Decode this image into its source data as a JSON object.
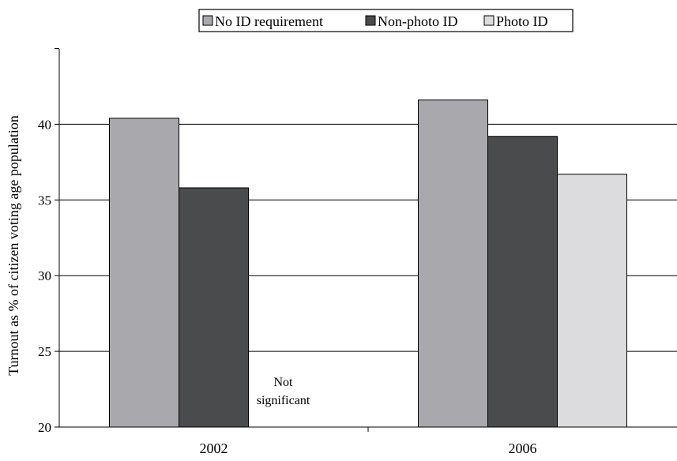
{
  "chart_data": {
    "type": "bar",
    "title": "",
    "xlabel": "",
    "ylabel": "Turnout as % of citizen voting age population",
    "ylim": [
      20,
      45
    ],
    "yticks": [
      20,
      25,
      30,
      35,
      40
    ],
    "grid": true,
    "legend_position": "top-center",
    "categories": [
      "2002",
      "2006"
    ],
    "series": [
      {
        "name": "No ID requirement",
        "color": "#a9a9ad",
        "values": [
          40.4,
          41.6
        ]
      },
      {
        "name": "Non-photo ID",
        "color": "#4a4b4d",
        "values": [
          35.8,
          39.2
        ]
      },
      {
        "name": "Photo ID",
        "color": "#dcdcde",
        "values": [
          null,
          36.7
        ]
      }
    ],
    "annotations": [
      {
        "category": "2002",
        "series": "Photo ID",
        "text_lines": [
          "Not",
          "significant"
        ]
      }
    ]
  }
}
